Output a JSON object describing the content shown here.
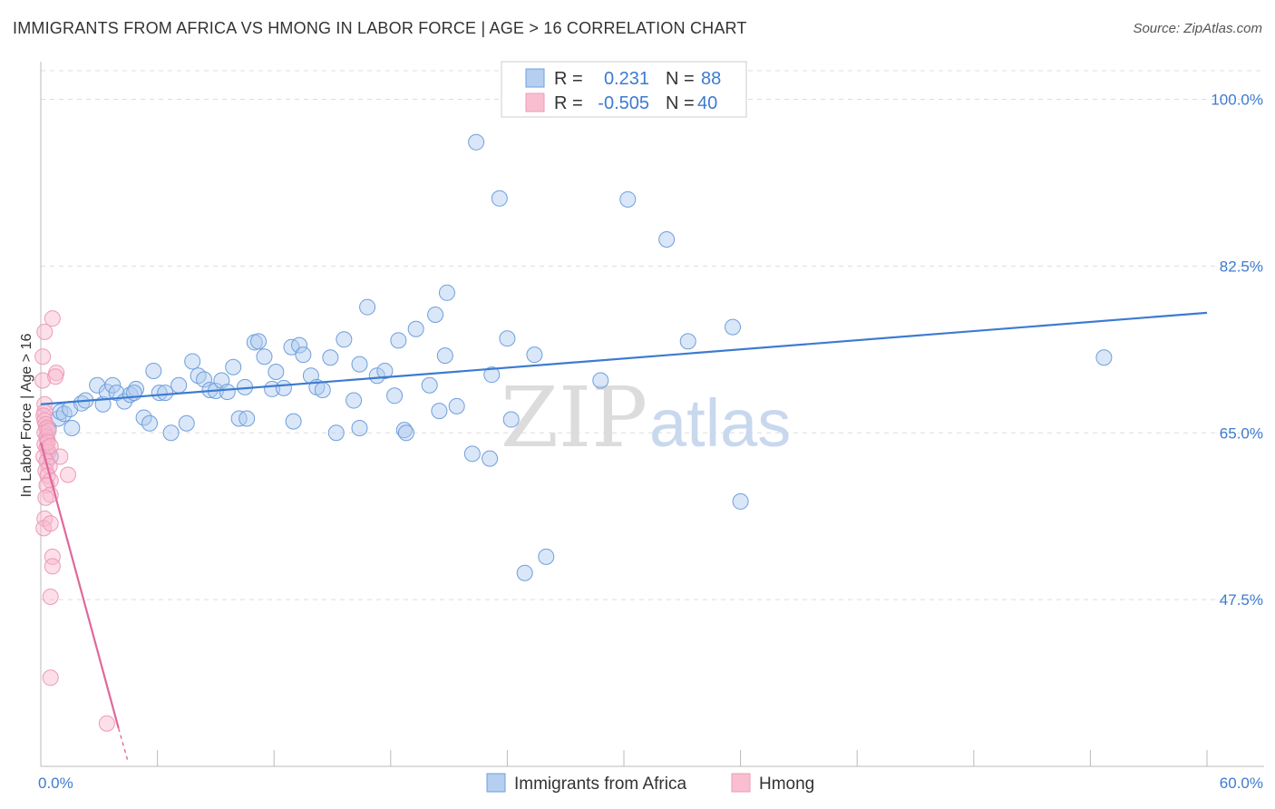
{
  "title": "IMMIGRANTS FROM AFRICA VS HMONG IN LABOR FORCE | AGE > 16 CORRELATION CHART",
  "source": "Source: ZipAtlas.com",
  "watermark": {
    "zip": "ZIP",
    "atlas": "atlas"
  },
  "colors": {
    "blue": "#3d7bd0",
    "blue_fill": "rgba(173,202,240,0.45)",
    "blue_stroke": "#6f9fdc",
    "pink": "#e0689a",
    "pink_fill": "rgba(248,184,204,0.45)",
    "pink_stroke": "#ee9ab8",
    "grid": "#dddddd",
    "axis": "#bbbbbb"
  },
  "legend": {
    "rows": [
      {
        "r_label": "R =",
        "r_value": "0.231",
        "n_label": "N =",
        "n_value": "88"
      },
      {
        "r_label": "R =",
        "r_value": "-0.505",
        "n_label": "N =",
        "n_value": "40"
      }
    ]
  },
  "chart_data": {
    "type": "scatter",
    "title": "IMMIGRANTS FROM AFRICA VS HMONG IN LABOR FORCE | AGE > 16 CORRELATION CHART",
    "xlabel": "",
    "ylabel": "In Labor Force | Age > 16",
    "xlim": [
      0,
      60
    ],
    "ylim": [
      30,
      103
    ],
    "x_tick_labels": [
      "0.0%",
      "60.0%"
    ],
    "y_ticks": [
      47.5,
      65.0,
      82.5,
      100.0
    ],
    "y_tick_labels": [
      "47.5%",
      "65.0%",
      "82.5%",
      "100.0%"
    ],
    "grid": true,
    "legend_position": "top-center",
    "series": [
      {
        "name": "Immigrants from Africa",
        "r": 0.231,
        "n": 88,
        "trend": {
          "x": [
            0,
            60
          ],
          "y": [
            68.0,
            77.6
          ]
        },
        "points": [
          [
            0.3,
            64.5
          ],
          [
            0.4,
            65.5
          ],
          [
            0.5,
            62.5
          ],
          [
            0.9,
            66.5
          ],
          [
            1.0,
            67.2
          ],
          [
            1.2,
            67.0
          ],
          [
            1.6,
            65.5
          ],
          [
            1.5,
            67.5
          ],
          [
            2.1,
            68.1
          ],
          [
            2.3,
            68.4
          ],
          [
            2.9,
            70.0
          ],
          [
            3.2,
            68.0
          ],
          [
            3.4,
            69.3
          ],
          [
            3.7,
            70.0
          ],
          [
            3.9,
            69.2
          ],
          [
            4.3,
            68.3
          ],
          [
            4.6,
            69.0
          ],
          [
            4.9,
            69.6
          ],
          [
            5.3,
            66.6
          ],
          [
            5.6,
            66.0
          ],
          [
            5.8,
            71.5
          ],
          [
            6.1,
            69.2
          ],
          [
            6.4,
            69.2
          ],
          [
            6.7,
            65.0
          ],
          [
            7.1,
            70.0
          ],
          [
            7.5,
            66.0
          ],
          [
            7.8,
            72.5
          ],
          [
            8.1,
            71.0
          ],
          [
            8.4,
            70.6
          ],
          [
            8.7,
            69.5
          ],
          [
            9.0,
            69.4
          ],
          [
            9.3,
            70.5
          ],
          [
            9.6,
            69.3
          ],
          [
            9.9,
            71.9
          ],
          [
            10.2,
            66.5
          ],
          [
            10.5,
            69.8
          ],
          [
            11.0,
            74.5
          ],
          [
            11.2,
            74.6
          ],
          [
            11.5,
            73.0
          ],
          [
            11.9,
            69.6
          ],
          [
            12.1,
            71.4
          ],
          [
            12.5,
            69.7
          ],
          [
            12.9,
            74.0
          ],
          [
            13.3,
            74.2
          ],
          [
            13.5,
            73.2
          ],
          [
            13.9,
            71.0
          ],
          [
            14.2,
            69.8
          ],
          [
            14.5,
            69.5
          ],
          [
            14.9,
            72.9
          ],
          [
            15.2,
            65.0
          ],
          [
            15.6,
            74.8
          ],
          [
            16.1,
            68.4
          ],
          [
            16.4,
            72.2
          ],
          [
            16.4,
            65.5
          ],
          [
            16.8,
            78.2
          ],
          [
            17.3,
            71.0
          ],
          [
            17.7,
            71.5
          ],
          [
            18.2,
            68.9
          ],
          [
            18.4,
            74.7
          ],
          [
            18.7,
            65.3
          ],
          [
            18.8,
            65.0
          ],
          [
            19.3,
            75.9
          ],
          [
            20.0,
            70.0
          ],
          [
            20.3,
            77.4
          ],
          [
            20.5,
            67.3
          ],
          [
            20.8,
            73.1
          ],
          [
            21.4,
            67.8
          ],
          [
            20.9,
            79.7
          ],
          [
            22.2,
            62.8
          ],
          [
            22.4,
            95.5
          ],
          [
            23.1,
            62.3
          ],
          [
            23.6,
            89.6
          ],
          [
            23.2,
            71.1
          ],
          [
            24.0,
            74.9
          ],
          [
            24.2,
            66.4
          ],
          [
            24.9,
            50.3
          ],
          [
            25.4,
            73.2
          ],
          [
            26.0,
            52.0
          ],
          [
            28.8,
            70.5
          ],
          [
            30.2,
            89.5
          ],
          [
            32.2,
            85.3
          ],
          [
            33.3,
            74.6
          ],
          [
            35.6,
            76.1
          ],
          [
            36.0,
            57.8
          ],
          [
            54.7,
            72.9
          ],
          [
            10.6,
            66.5
          ],
          [
            13.0,
            66.2
          ],
          [
            4.8,
            69.2
          ]
        ]
      },
      {
        "name": "Hmong",
        "r": -0.505,
        "n": 40,
        "trend": {
          "x": [
            0,
            4.0
          ],
          "y": [
            64.0,
            34.0
          ],
          "dashed_to": {
            "x": 4.5,
            "y": 30.4
          }
        },
        "points": [
          [
            0.1,
            73.0
          ],
          [
            0.1,
            70.5
          ],
          [
            0.2,
            68.0
          ],
          [
            0.2,
            67.2
          ],
          [
            0.15,
            66.8
          ],
          [
            0.2,
            66.3
          ],
          [
            0.25,
            65.9
          ],
          [
            0.3,
            65.5
          ],
          [
            0.2,
            65.0
          ],
          [
            0.3,
            64.6
          ],
          [
            0.35,
            64.2
          ],
          [
            0.2,
            63.8
          ],
          [
            0.3,
            63.4
          ],
          [
            0.4,
            63.0
          ],
          [
            0.15,
            62.5
          ],
          [
            0.3,
            62.0
          ],
          [
            0.45,
            61.5
          ],
          [
            0.25,
            61.0
          ],
          [
            0.35,
            60.5
          ],
          [
            0.5,
            60.0
          ],
          [
            0.3,
            59.5
          ],
          [
            0.5,
            58.5
          ],
          [
            0.2,
            56.0
          ],
          [
            0.15,
            55.0
          ],
          [
            0.5,
            55.5
          ],
          [
            0.6,
            52.0
          ],
          [
            0.6,
            51.0
          ],
          [
            0.5,
            47.8
          ],
          [
            0.6,
            77.0
          ],
          [
            0.2,
            75.6
          ],
          [
            0.8,
            71.3
          ],
          [
            0.75,
            70.9
          ],
          [
            1.0,
            62.5
          ],
          [
            1.4,
            60.6
          ],
          [
            0.5,
            39.3
          ],
          [
            3.4,
            34.5
          ],
          [
            0.4,
            65.2
          ],
          [
            0.35,
            64.0
          ],
          [
            0.5,
            63.6
          ],
          [
            0.25,
            58.2
          ]
        ]
      }
    ]
  },
  "bottom_legend": [
    {
      "label": "Immigrants from Africa"
    },
    {
      "label": "Hmong"
    }
  ]
}
